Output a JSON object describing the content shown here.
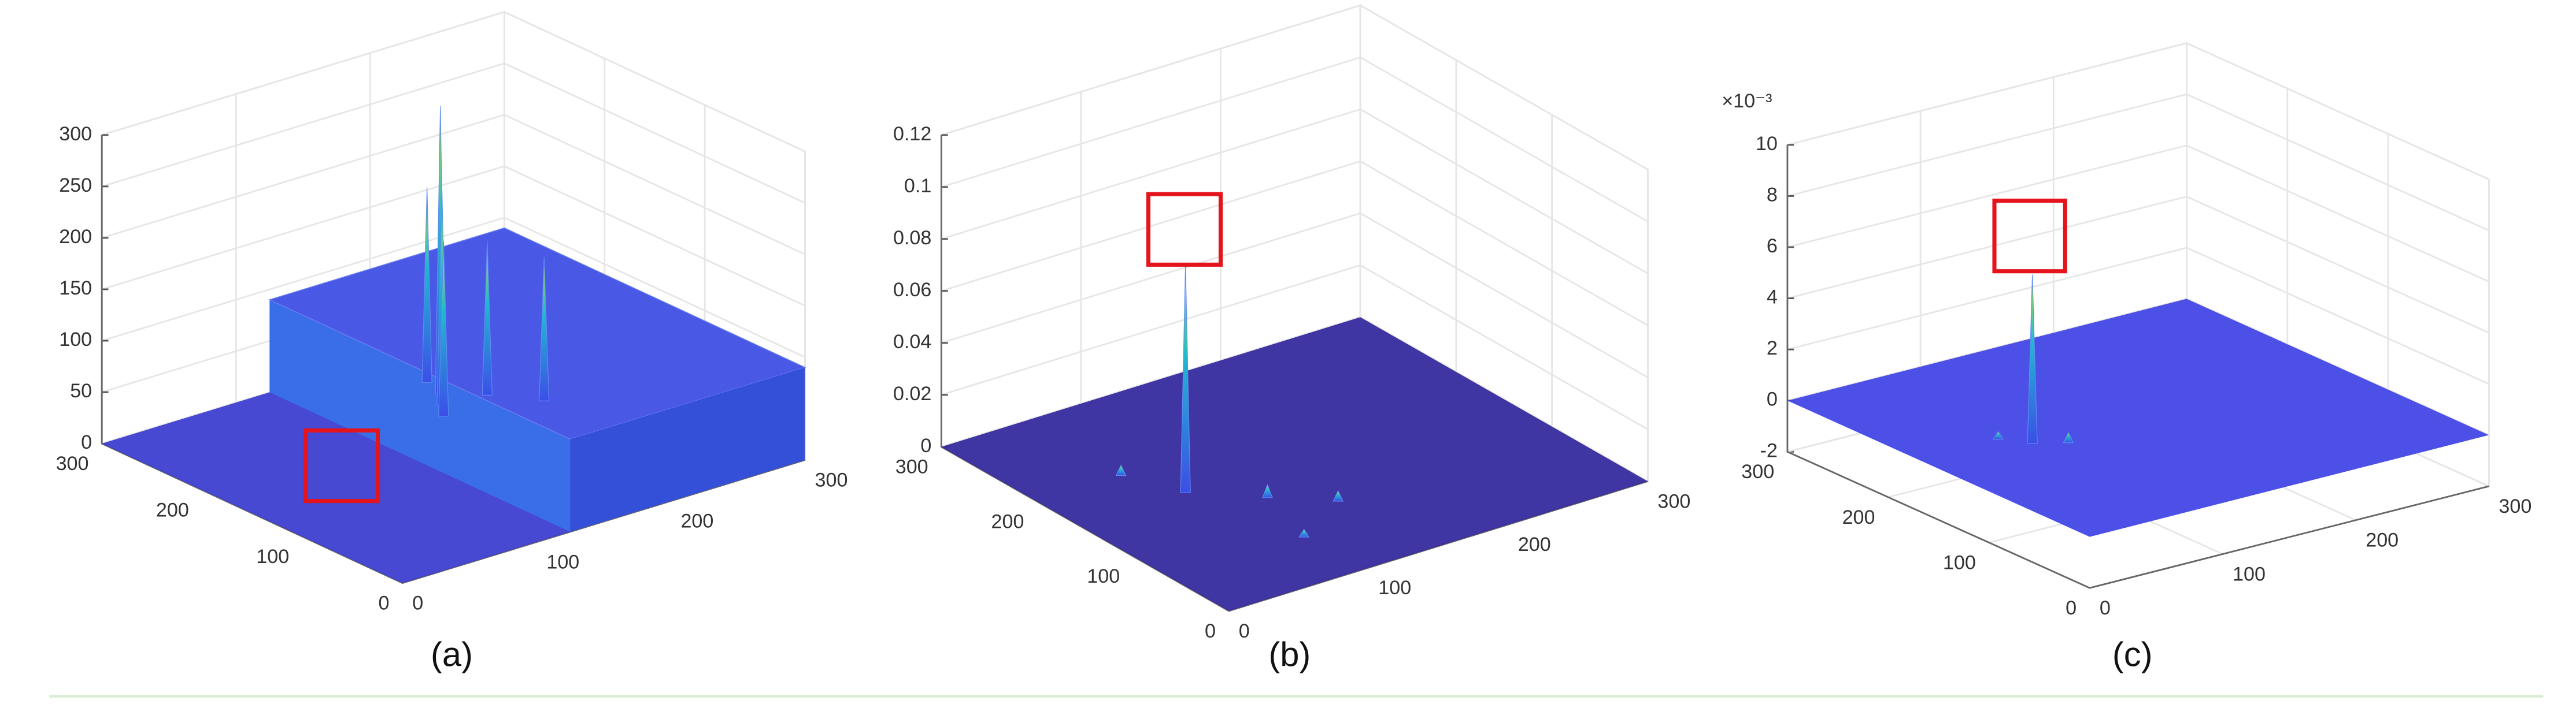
{
  "chart_data": [
    {
      "type": "surface3d",
      "caption": "(a)",
      "xlim": [
        0,
        300
      ],
      "ylim": [
        0,
        300
      ],
      "zlim": [
        0,
        300
      ],
      "xticks": [
        0,
        100,
        200,
        300
      ],
      "yticks": [
        0,
        100,
        200,
        300
      ],
      "zticks": [
        0,
        50,
        100,
        150,
        200,
        250,
        300
      ],
      "surface_color": "#3d3fd0",
      "plateau": {
        "x": [
          125,
          300
        ],
        "z": 90
      },
      "peaks": [
        {
          "x": 200,
          "y": 230,
          "z": 280
        },
        {
          "x": 190,
          "y": 215,
          "z": 210
        },
        {
          "x": 205,
          "y": 250,
          "z": 190
        },
        {
          "x": 180,
          "y": 200,
          "z": 170
        },
        {
          "x": 220,
          "y": 210,
          "z": 150
        },
        {
          "x": 240,
          "y": 180,
          "z": 140
        }
      ]
    },
    {
      "type": "surface3d",
      "caption": "(b)",
      "xlim": [
        0,
        300
      ],
      "ylim": [
        0,
        300
      ],
      "zlim": [
        0,
        0.12
      ],
      "xticks": [
        0,
        100,
        200,
        300
      ],
      "yticks": [
        0,
        100,
        200,
        300
      ],
      "zticks": [
        0,
        0.02,
        0.04,
        0.06,
        0.08,
        0.1,
        0.12
      ],
      "surface_color": "#352a9e",
      "peaks": [
        {
          "x": 76,
          "y": 156,
          "z": 0.088
        },
        {
          "x": 110,
          "y": 120,
          "z": 0.005
        },
        {
          "x": 60,
          "y": 200,
          "z": 0.004
        },
        {
          "x": 140,
          "y": 90,
          "z": 0.004
        },
        {
          "x": 95,
          "y": 60,
          "z": 0.003
        }
      ]
    },
    {
      "type": "surface3d",
      "caption": "(c)",
      "z_multiplier_label": "×10⁻³",
      "xlim": [
        0,
        300
      ],
      "ylim": [
        0,
        300
      ],
      "zlim": [
        -2,
        10
      ],
      "xticks": [
        0,
        100,
        200,
        300
      ],
      "yticks": [
        0,
        100,
        200,
        300
      ],
      "zticks": [
        -2,
        0,
        2,
        4,
        6,
        8,
        10
      ],
      "surface_color": "#4247e6",
      "peaks": [
        {
          "x": 72,
          "y": 152,
          "z": 6.6
        },
        {
          "x": 90,
          "y": 140,
          "z": 0.4
        },
        {
          "x": 60,
          "y": 170,
          "z": 0.3
        }
      ]
    }
  ]
}
